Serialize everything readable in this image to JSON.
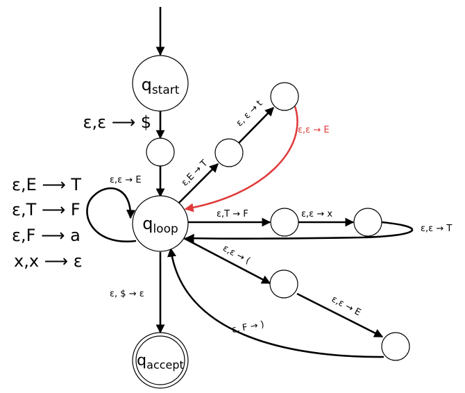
{
  "states": {
    "start": {
      "name": "q",
      "sub": "start"
    },
    "loop": {
      "name": "q",
      "sub": "loop"
    },
    "accept": {
      "name": "q",
      "sub": "accept"
    }
  },
  "transitions": {
    "start_to_mid": "ε,ε ⟶ $",
    "mid_to_loop": "ε,ε → E",
    "loop_to_a": "ε,E → T",
    "a_to_b": "ε, ε → t",
    "b_to_loop": "ε,ε → E",
    "loop_to_c": "ε,T → F",
    "c_to_d": "ε,ε → x",
    "d_to_loop": "ε,ε → T",
    "loop_to_e": "ε,ε → (",
    "e_to_f": "ε,ε → E",
    "f_to_loop": "ε, F → )",
    "loop_to_accept": "ε, $ → ε"
  },
  "self_loop_rules": [
    "ε,E ⟶ T",
    "ε,T ⟶ F",
    "ε,F ⟶ a",
    "x,x ⟶ ε"
  ],
  "colors": {
    "stroke": "#000000",
    "highlight": "#e03b3b"
  }
}
